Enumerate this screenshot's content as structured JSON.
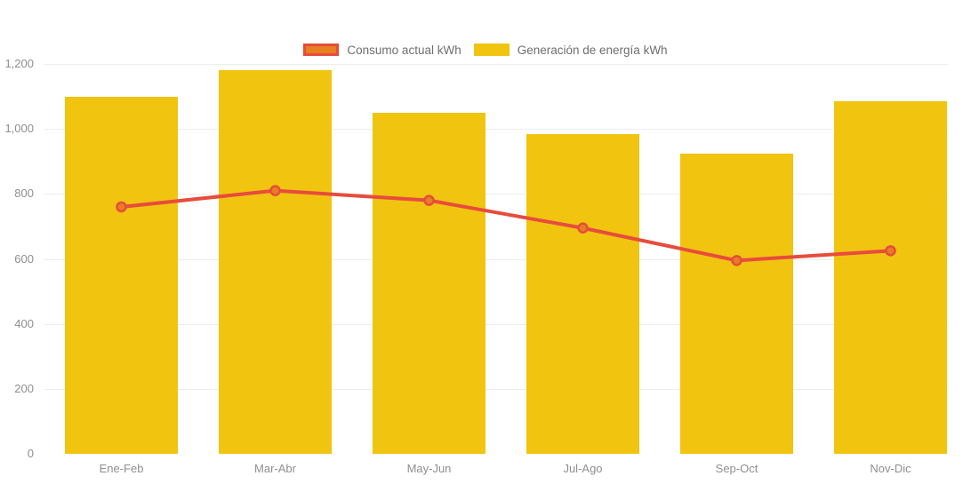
{
  "legend": {
    "items": [
      {
        "label": "Consumo actual kWh",
        "color": "#E67E22",
        "border": "#E74C3C"
      },
      {
        "label": "Generación de energía kWh",
        "color": "#F1C40F",
        "border": ""
      }
    ]
  },
  "chart_data": {
    "type": "bar",
    "subtype": "bar + line combo",
    "categories": [
      "Ene-Feb",
      "Mar-Abr",
      "May-Jun",
      "Jul-Ago",
      "Sep-Oct",
      "Nov-Dic"
    ],
    "series": [
      {
        "name": "Generación de energía kWh",
        "type": "bar",
        "color": "#F1C40F",
        "values": [
          1100,
          1180,
          1050,
          985,
          925,
          1085
        ]
      },
      {
        "name": "Consumo actual kWh",
        "type": "line",
        "color": "#E74C3C",
        "marker_fill": "#E67E22",
        "marker_stroke": "#E74C3C",
        "values": [
          760,
          810,
          780,
          695,
          595,
          625
        ]
      }
    ],
    "title": "",
    "xlabel": "",
    "ylabel": "",
    "ylim": [
      0,
      1200
    ],
    "yticks": [
      0,
      200,
      400,
      600,
      800,
      1000,
      1200
    ],
    "ytick_labels": [
      "0",
      "200",
      "400",
      "600",
      "800",
      "1,000",
      "1,200"
    ],
    "grid": "faint horizontal gridlines",
    "legend_position": "top-center",
    "axis_label_color": "#8f8f8f"
  }
}
